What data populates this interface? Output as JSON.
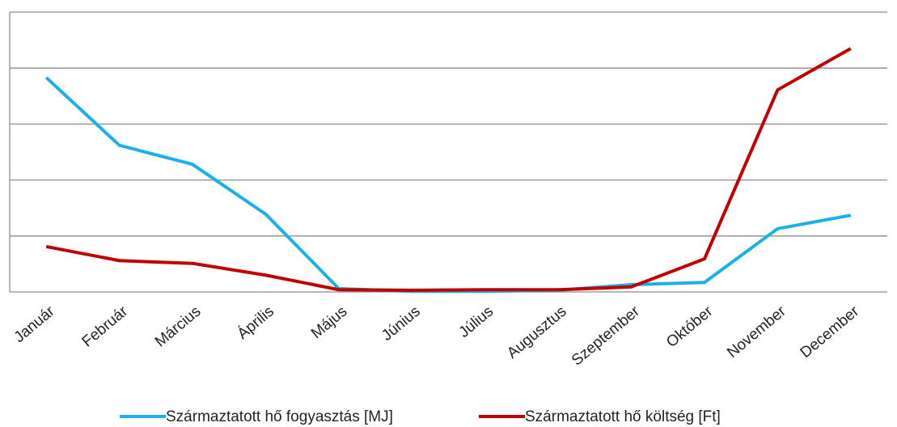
{
  "chart_data": {
    "type": "line",
    "categories": [
      "Január",
      "Február",
      "Március",
      "Április",
      "Május",
      "Június",
      "Július",
      "Augusztus",
      "Szeptember",
      "Október",
      "November",
      "December"
    ],
    "series": [
      {
        "name": "Származtatott hő fogyasztás [MJ]",
        "color": "#1ab0e8",
        "values": [
          3.83,
          2.62,
          2.28,
          1.39,
          0.06,
          0.01,
          0.01,
          0.03,
          0.13,
          0.17,
          1.13,
          1.37
        ]
      },
      {
        "name": "Származtatott hő költség [Ft]",
        "color": "#c00000",
        "values": [
          0.81,
          0.56,
          0.51,
          0.3,
          0.04,
          0.03,
          0.04,
          0.04,
          0.09,
          0.59,
          3.61,
          4.35
        ]
      }
    ],
    "ylim": [
      0,
      5
    ],
    "yticks": [
      0,
      1,
      2,
      3,
      4,
      5
    ],
    "grid": true,
    "legend": "bottom"
  }
}
